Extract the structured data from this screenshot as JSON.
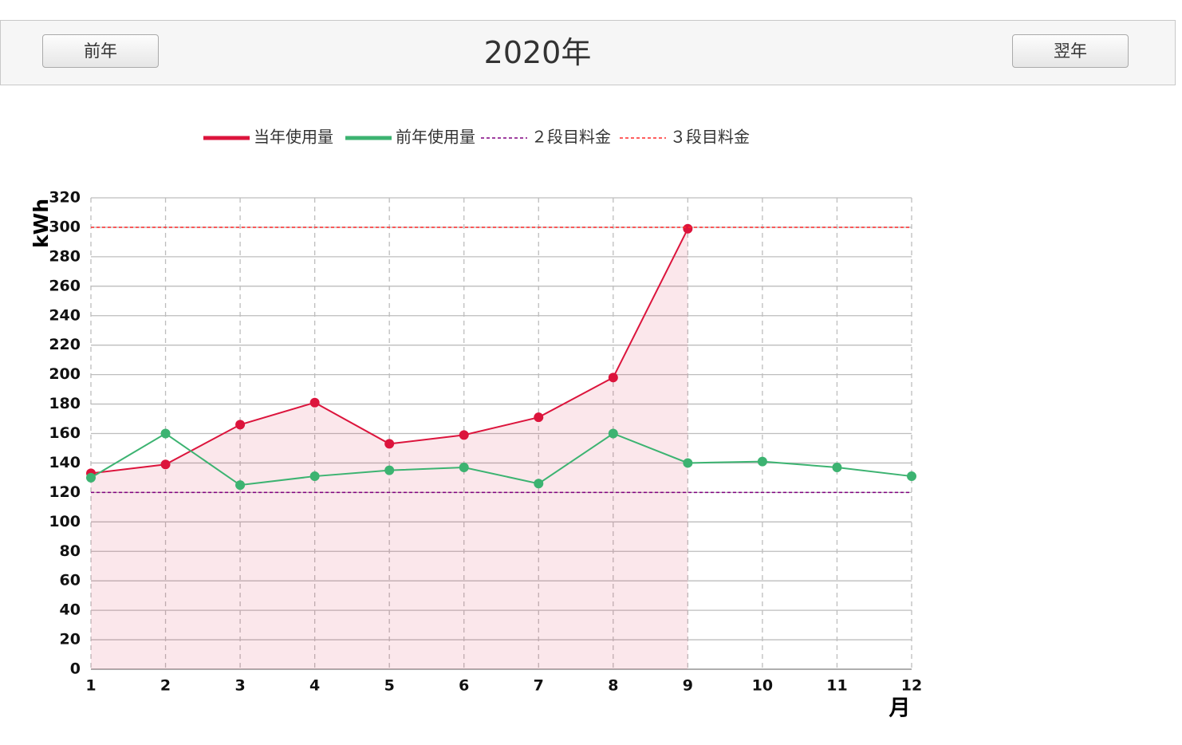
{
  "header": {
    "prev_button": "前年",
    "title": "2020年",
    "next_button": "翌年"
  },
  "chart_data": {
    "type": "line",
    "x_label": "月",
    "y_label": "kWh",
    "x": [
      1,
      2,
      3,
      4,
      5,
      6,
      7,
      8,
      9,
      10,
      11,
      12
    ],
    "xlim": [
      1,
      12
    ],
    "xticks": [
      1,
      2,
      3,
      4,
      5,
      6,
      7,
      8,
      9,
      10,
      11,
      12
    ],
    "ylim": [
      0,
      320
    ],
    "yticks": [
      0,
      20,
      40,
      60,
      80,
      100,
      120,
      140,
      160,
      180,
      200,
      220,
      240,
      260,
      280,
      300,
      320
    ],
    "grid": true,
    "legend": "top",
    "series": [
      {
        "name": "当年使用量",
        "color": "#dc143c",
        "area": true,
        "markers": true,
        "dashed": false,
        "values": [
          133,
          139,
          166,
          181,
          153,
          159,
          171,
          198,
          299,
          null,
          null,
          null
        ]
      },
      {
        "name": "前年使用量",
        "color": "#3cb371",
        "area": false,
        "markers": true,
        "dashed": false,
        "values": [
          130,
          160,
          125,
          131,
          135,
          137,
          126,
          160,
          140,
          141,
          137,
          131
        ]
      },
      {
        "name": "２段目料金",
        "color": "#800080",
        "area": false,
        "markers": false,
        "dashed": true,
        "values": [
          120,
          120,
          120,
          120,
          120,
          120,
          120,
          120,
          120,
          120,
          120,
          120
        ]
      },
      {
        "name": "３段目料金",
        "color": "#ff2a2a",
        "area": false,
        "markers": false,
        "dashed": true,
        "values": [
          300,
          300,
          300,
          300,
          300,
          300,
          300,
          300,
          300,
          300,
          300,
          300
        ]
      }
    ]
  }
}
